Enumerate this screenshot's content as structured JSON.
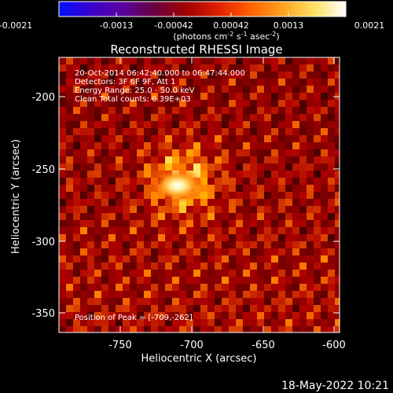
{
  "colorbar": {
    "tick_labels": [
      "-0.0021",
      "-0.0013",
      "-0.00042",
      "0.00042",
      "0.0013",
      "0.0021"
    ],
    "units_main": "(photons cm",
    "units_sup1": "-2",
    "units_mid1": " s",
    "units_sup2": "-1",
    "units_mid2": " asec",
    "units_sup3": "-2",
    "units_end": ")",
    "stops": [
      "#0010ff",
      "#3a00cc",
      "#5a00a0",
      "#6a0040",
      "#a00000",
      "#e02000",
      "#ff6000",
      "#ffa020",
      "#ffe060",
      "#ffffff"
    ]
  },
  "plot": {
    "title": "Reconstructed RHESSI Image",
    "info_lines": [
      "20-Oct-2014 06:42:40.000 to 06:47:44.000",
      "Detectors: 3F 6F 9F, Att 1",
      "Energy Range: 25.0 - 50.0 keV",
      "Clean     Total counts: 6.39E+03"
    ],
    "peak_label": "Position of Peak = [-709,-262]",
    "xlabel": "Heliocentric X (arcsec)",
    "ylabel": "Heliocentric Y (arcsec)",
    "x_ticks": [
      "-750",
      "-700",
      "-650",
      "-600"
    ],
    "y_ticks": [
      "-200",
      "-250",
      "-300",
      "-350"
    ],
    "xlim": [
      -795,
      -600
    ],
    "ylim": [
      -365,
      -178
    ],
    "peak": [
      -709,
      -262
    ]
  },
  "footer": {
    "date": "18-May-2022 10:21"
  }
}
